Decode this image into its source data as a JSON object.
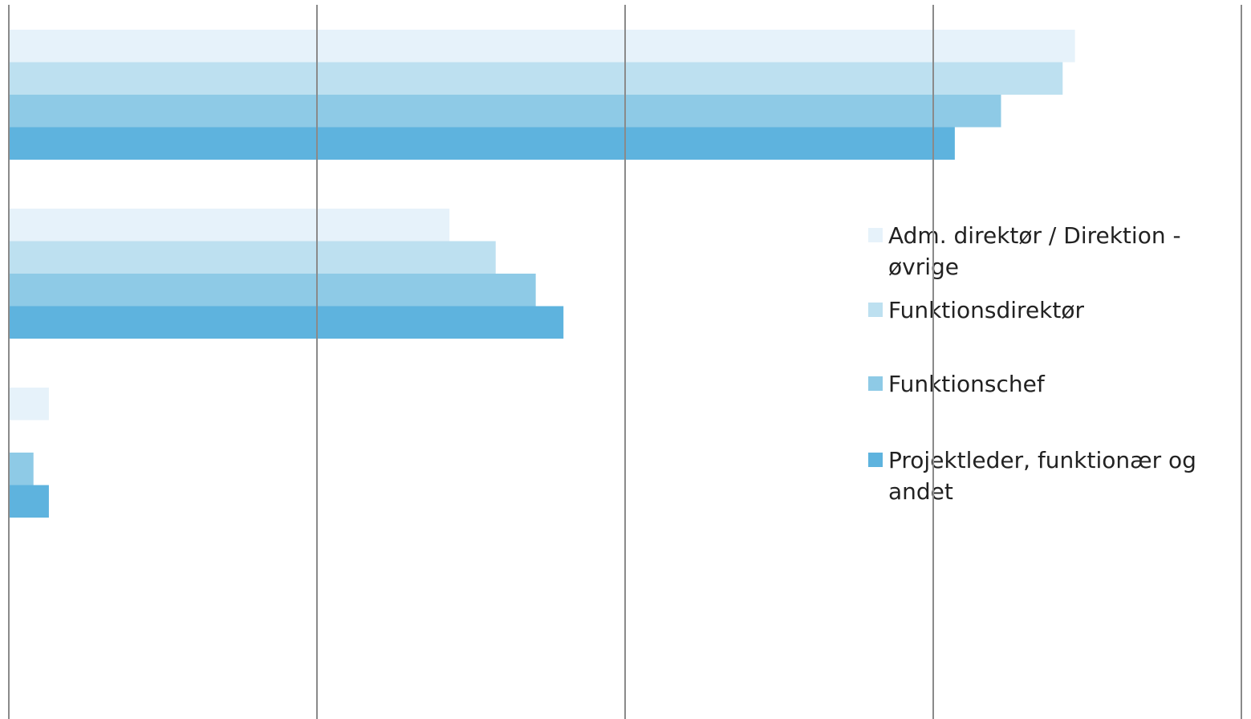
{
  "chart_data": {
    "type": "bar",
    "orientation": "horizontal",
    "categories": [
      null,
      null,
      null,
      null
    ],
    "series": [
      {
        "name": "Adm. direktør / Direktion - øvrige",
        "color": "#e6f2fa",
        "values": [
          3.46,
          1.43,
          0.13,
          0
        ]
      },
      {
        "name": "Funktionsdirektør",
        "color": "#bde0f0",
        "values": [
          3.42,
          1.58,
          0,
          0
        ]
      },
      {
        "name": "Funktionschef",
        "color": "#8ecae6",
        "values": [
          3.22,
          1.71,
          0.08,
          0
        ]
      },
      {
        "name": "Projektleder, funktionær og andet",
        "color": "#5eb3de",
        "values": [
          3.07,
          1.8,
          0.13,
          0
        ]
      }
    ],
    "xlim": [
      0,
      4
    ],
    "xticks": [
      0,
      1,
      2,
      3,
      4
    ],
    "grid": true,
    "legend": "right"
  }
}
